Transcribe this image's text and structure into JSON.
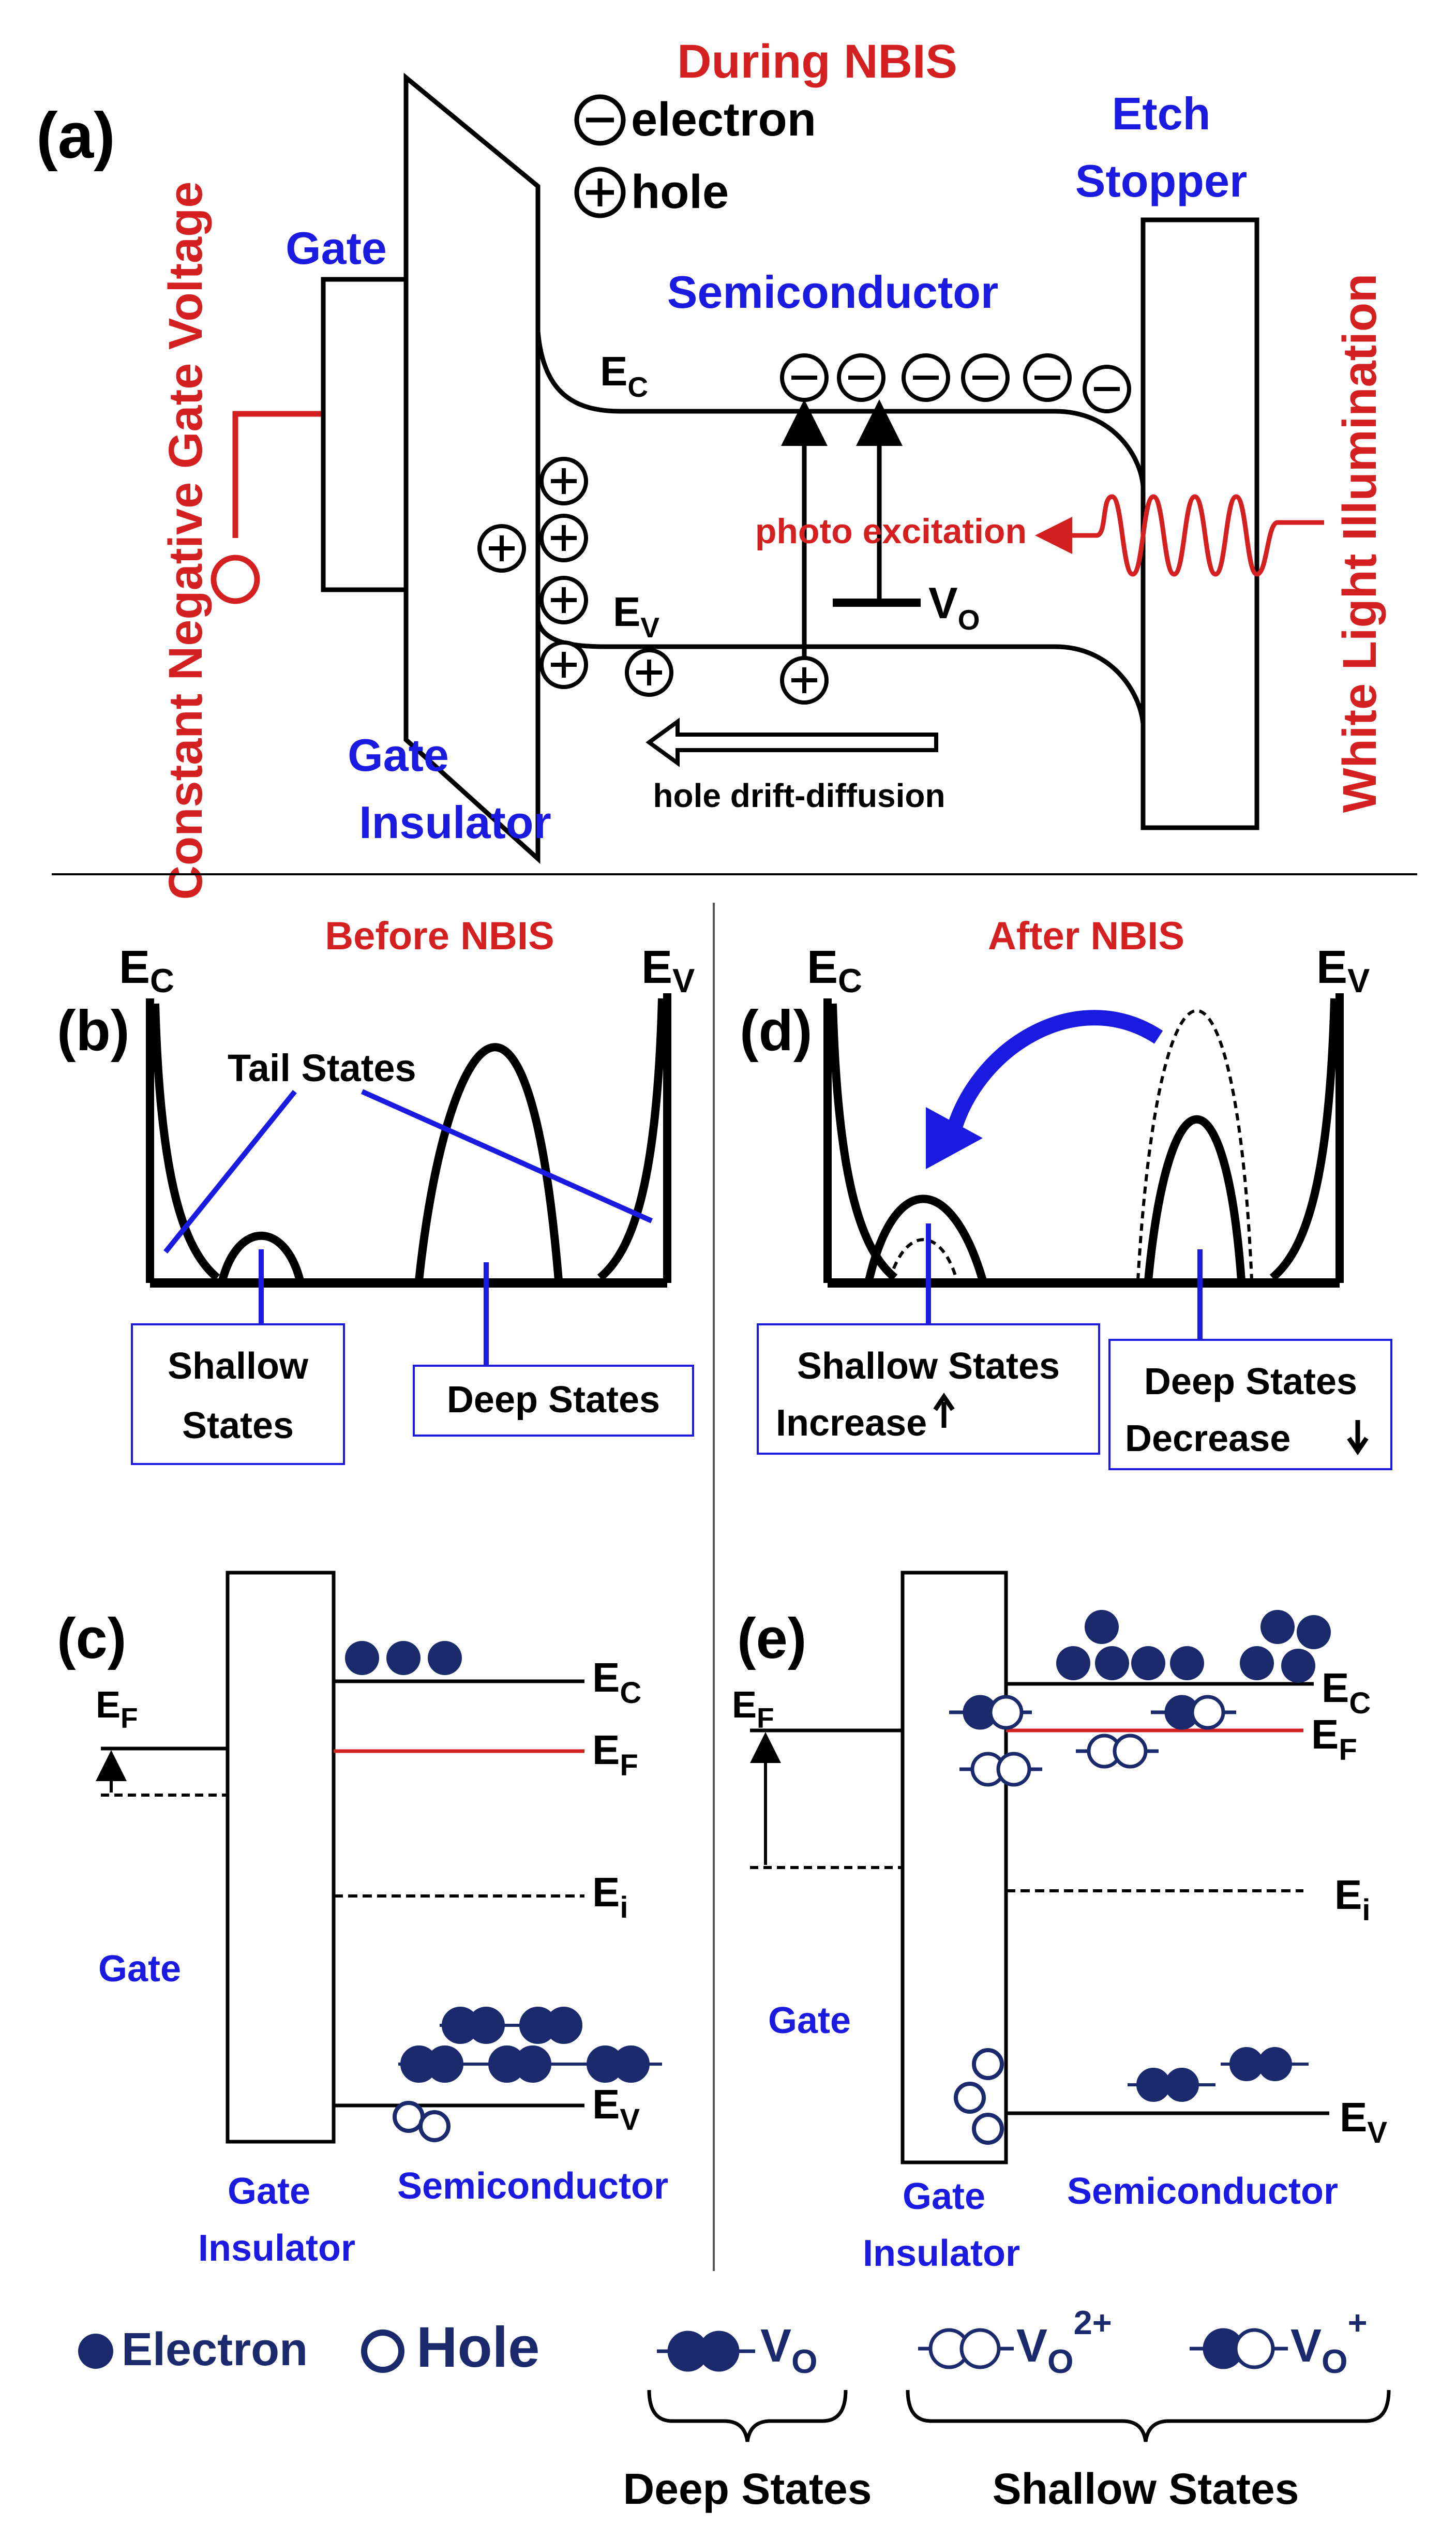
{
  "panel_a": {
    "panel_label": "(a)",
    "title": "During NBIS",
    "legend_electron_symbol": "−",
    "legend_electron": "electron",
    "legend_hole_symbol": "+",
    "legend_hole": "hole",
    "gate": "Gate",
    "gate_insulator_line1": "Gate",
    "gate_insulator_line2": "Insulator",
    "semiconductor": "Semiconductor",
    "etch_stopper_line1": "Etch",
    "etch_stopper_line2": "Stopper",
    "ec": "E",
    "ec_sub": "C",
    "ev": "E",
    "ev_sub": "V",
    "vo": "V",
    "vo_sub": "O",
    "photo_excitation": "photo excitation",
    "hole_drift": "hole drift-diffusion",
    "left_vertical": "Constant  Negative Gate Voltage",
    "right_vertical": "White Light Illumination"
  },
  "panel_b": {
    "panel_label": "(b)",
    "title": "Before NBIS",
    "ec": "E",
    "ec_sub": "C",
    "ev": "E",
    "ev_sub": "V",
    "tail_states": "Tail States",
    "shallow_line1": "Shallow",
    "shallow_line2": "States",
    "deep": "Deep States"
  },
  "panel_d": {
    "panel_label": "(d)",
    "title": "After NBIS",
    "ec": "E",
    "ec_sub": "C",
    "ev": "E",
    "ev_sub": "V",
    "shallow_line1": "Shallow States",
    "shallow_line2": "Increase",
    "deep_line1": "Deep States",
    "deep_line2": "Decrease"
  },
  "panel_c": {
    "panel_label": "(c)",
    "gate": "Gate",
    "gate_insulator_line1": "Gate",
    "gate_insulator_line2": "Insulator",
    "semiconductor": "Semiconductor",
    "ef_left": "E",
    "ef_left_sub": "F",
    "ec": "E",
    "ec_sub": "C",
    "ef": "E",
    "ef_sub": "F",
    "ei": "E",
    "ei_sub": "i",
    "ev": "E",
    "ev_sub": "V"
  },
  "panel_e": {
    "panel_label": "(e)",
    "gate": "Gate",
    "gate_insulator_line1": "Gate",
    "gate_insulator_line2": "Insulator",
    "semiconductor": "Semiconductor",
    "ef_left": "E",
    "ef_left_sub": "F",
    "ec": "E",
    "ec_sub": "C",
    "ef": "E",
    "ef_sub": "F",
    "ei": "E",
    "ei_sub": "i",
    "ev": "E",
    "ev_sub": "V"
  },
  "legend": {
    "electron": "Electron",
    "hole": "Hole",
    "vo": "V",
    "vo_sub": "O",
    "vo2": "V",
    "vo2_sub": "O",
    "vo2_sup": "2+",
    "vo1": "V",
    "vo1_sub": "O",
    "vo1_sup": "+",
    "deep_states": "Deep States",
    "shallow_states": "Shallow States"
  },
  "colors": {
    "red": "#d42020",
    "blue": "#1a1ae0",
    "navy": "#1a2a6c",
    "black": "#000000"
  }
}
